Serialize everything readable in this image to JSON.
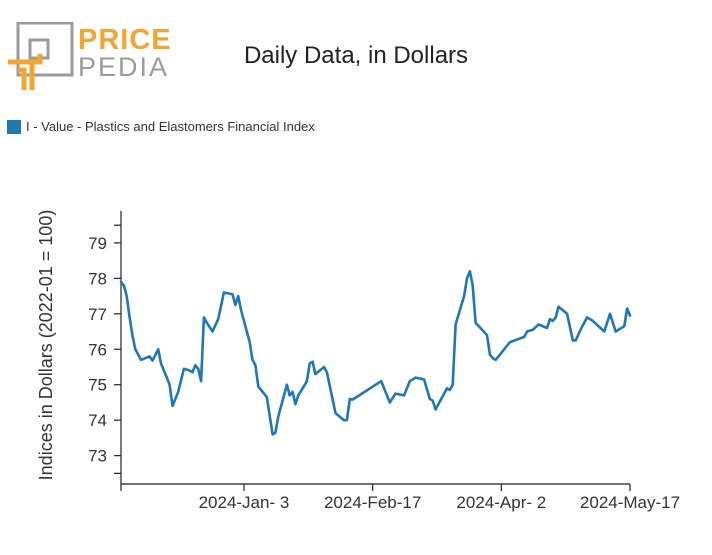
{
  "logo": {
    "line1": "PRICE",
    "line2": "PEDIA",
    "colors": {
      "orange": "#f3a532",
      "gray": "#9b9b9b"
    }
  },
  "title": "Daily Data, in Dollars",
  "legend": {
    "label": "I - Value - Plastics and Elastomers Financial Index",
    "color": "#1f77b4"
  },
  "chart_data": {
    "type": "line",
    "title": "Daily Data, in Dollars",
    "xlabel": "",
    "ylabel": "Indices in Dollars (2022-01 = 100)",
    "ylim": [
      72.2,
      79.9
    ],
    "yticks": [
      73,
      74,
      75,
      76,
      77,
      78,
      79
    ],
    "xrange": [
      "2023-11-21",
      "2024-05-17"
    ],
    "xticks": [
      {
        "date": "2023-11-21",
        "label": ""
      },
      {
        "date": "2024-01-03",
        "label": "2024-Jan- 3"
      },
      {
        "date": "2024-02-17",
        "label": "2024-Feb-17"
      },
      {
        "date": "2024-04-02",
        "label": "2024-Apr- 2"
      },
      {
        "date": "2024-05-17",
        "label": "2024-May-17"
      }
    ],
    "grid": false,
    "legend_position": "top-left",
    "series": [
      {
        "name": "I - Value - Plastics and Elastomers Financial Index",
        "color": "#1f77b4",
        "points": [
          [
            "2023-11-21",
            77.9
          ],
          [
            "2023-11-22",
            77.8
          ],
          [
            "2023-11-23",
            77.5
          ],
          [
            "2023-11-24",
            76.9
          ],
          [
            "2023-11-25",
            76.4
          ],
          [
            "2023-11-26",
            76.0
          ],
          [
            "2023-11-27",
            75.85
          ],
          [
            "2023-11-28",
            75.7
          ],
          [
            "2023-12-01",
            75.8
          ],
          [
            "2023-12-02",
            75.68
          ],
          [
            "2023-12-04",
            76.0
          ],
          [
            "2023-12-05",
            75.6
          ],
          [
            "2023-12-07",
            75.2
          ],
          [
            "2023-12-08",
            75.0
          ],
          [
            "2023-12-09",
            74.4
          ],
          [
            "2023-12-11",
            74.8
          ],
          [
            "2023-12-13",
            75.45
          ],
          [
            "2023-12-15",
            75.4
          ],
          [
            "2023-12-16",
            75.35
          ],
          [
            "2023-12-17",
            75.55
          ],
          [
            "2023-12-18",
            75.45
          ],
          [
            "2023-12-19",
            75.1
          ],
          [
            "2023-12-20",
            76.9
          ],
          [
            "2023-12-21",
            76.75
          ],
          [
            "2023-12-23",
            76.5
          ],
          [
            "2023-12-25",
            76.85
          ],
          [
            "2023-12-27",
            77.6
          ],
          [
            "2023-12-30",
            77.55
          ],
          [
            "2023-12-31",
            77.25
          ],
          [
            "2024-01-01",
            77.5
          ],
          [
            "2024-01-02",
            77.1
          ],
          [
            "2024-01-05",
            76.2
          ],
          [
            "2024-01-06",
            75.7
          ],
          [
            "2024-01-07",
            75.55
          ],
          [
            "2024-01-08",
            74.95
          ],
          [
            "2024-01-11",
            74.65
          ],
          [
            "2024-01-13",
            73.6
          ],
          [
            "2024-01-14",
            73.65
          ],
          [
            "2024-01-15",
            74.1
          ],
          [
            "2024-01-17",
            74.7
          ],
          [
            "2024-01-18",
            75.0
          ],
          [
            "2024-01-19",
            74.7
          ],
          [
            "2024-01-20",
            74.8
          ],
          [
            "2024-01-21",
            74.45
          ],
          [
            "2024-01-22",
            74.7
          ],
          [
            "2024-01-25",
            75.1
          ],
          [
            "2024-01-26",
            75.6
          ],
          [
            "2024-01-27",
            75.65
          ],
          [
            "2024-01-28",
            75.3
          ],
          [
            "2024-01-31",
            75.5
          ],
          [
            "2024-02-01",
            75.35
          ],
          [
            "2024-02-04",
            74.2
          ],
          [
            "2024-02-07",
            74.0
          ],
          [
            "2024-02-08",
            74.0
          ],
          [
            "2024-02-09",
            74.6
          ],
          [
            "2024-02-10",
            74.58
          ],
          [
            "2024-02-20",
            75.1
          ],
          [
            "2024-02-23",
            74.5
          ],
          [
            "2024-02-25",
            74.75
          ],
          [
            "2024-02-28",
            74.7
          ],
          [
            "2024-03-01",
            75.1
          ],
          [
            "2024-03-03",
            75.2
          ],
          [
            "2024-03-06",
            75.15
          ],
          [
            "2024-03-08",
            74.6
          ],
          [
            "2024-03-09",
            74.55
          ],
          [
            "2024-03-10",
            74.3
          ],
          [
            "2024-03-14",
            74.9
          ],
          [
            "2024-03-15",
            74.85
          ],
          [
            "2024-03-16",
            75.0
          ],
          [
            "2024-03-17",
            76.7
          ],
          [
            "2024-03-20",
            77.5
          ],
          [
            "2024-03-21",
            78.0
          ],
          [
            "2024-03-22",
            78.2
          ],
          [
            "2024-03-23",
            77.8
          ],
          [
            "2024-03-24",
            76.75
          ],
          [
            "2024-03-28",
            76.4
          ],
          [
            "2024-03-29",
            75.85
          ],
          [
            "2024-03-30",
            75.75
          ],
          [
            "2024-03-31",
            75.7
          ],
          [
            "2024-04-03",
            76.0
          ],
          [
            "2024-04-05",
            76.2
          ],
          [
            "2024-04-10",
            76.35
          ],
          [
            "2024-04-11",
            76.5
          ],
          [
            "2024-04-13",
            76.55
          ],
          [
            "2024-04-15",
            76.7
          ],
          [
            "2024-04-18",
            76.6
          ],
          [
            "2024-04-19",
            76.85
          ],
          [
            "2024-04-20",
            76.8
          ],
          [
            "2024-04-21",
            76.9
          ],
          [
            "2024-04-22",
            77.2
          ],
          [
            "2024-04-25",
            77.0
          ],
          [
            "2024-04-27",
            76.25
          ],
          [
            "2024-04-28",
            76.25
          ],
          [
            "2024-04-30",
            76.6
          ],
          [
            "2024-05-02",
            76.9
          ],
          [
            "2024-05-04",
            76.8
          ],
          [
            "2024-05-08",
            76.5
          ],
          [
            "2024-05-10",
            77.0
          ],
          [
            "2024-05-12",
            76.5
          ],
          [
            "2024-05-15",
            76.65
          ],
          [
            "2024-05-16",
            77.15
          ],
          [
            "2024-05-17",
            76.95
          ]
        ]
      }
    ]
  }
}
